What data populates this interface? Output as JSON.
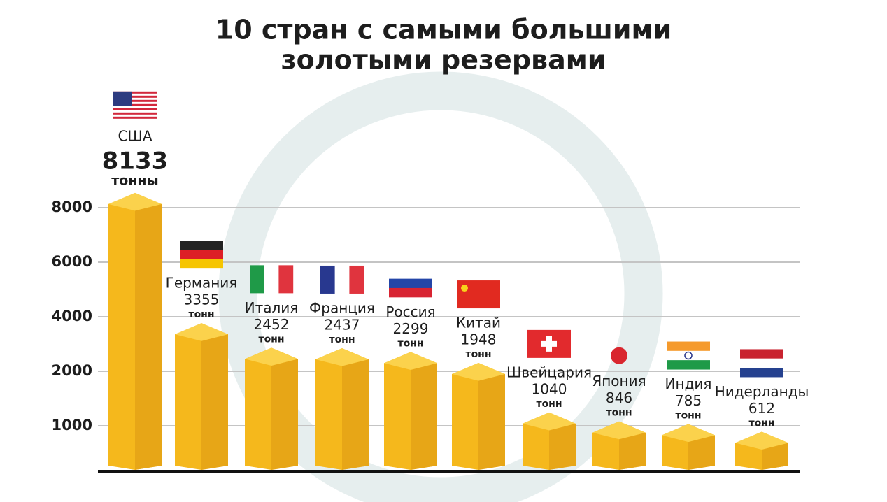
{
  "chart_data": {
    "type": "bar",
    "title": [
      "10 стран с самыми большими",
      "золотыми резервами"
    ],
    "categories": [
      "США",
      "Германия",
      "Италия",
      "Франция",
      "Россия",
      "Китай",
      "Швейцария",
      "Япония",
      "Индия",
      "Нидерланды"
    ],
    "values": [
      8133,
      3355,
      2452,
      2437,
      2299,
      1948,
      1040,
      846,
      785,
      612
    ],
    "units": [
      "тонны",
      "тонн",
      "тонн",
      "тонн",
      "тонн",
      "тонн",
      "тонн",
      "тонн",
      "тонн",
      "тонн"
    ],
    "color": "#f5b81c",
    "ylim": [
      0,
      9000
    ],
    "yticks": [
      8000,
      6000,
      4000,
      2000,
      1000
    ],
    "grid": true
  }
}
